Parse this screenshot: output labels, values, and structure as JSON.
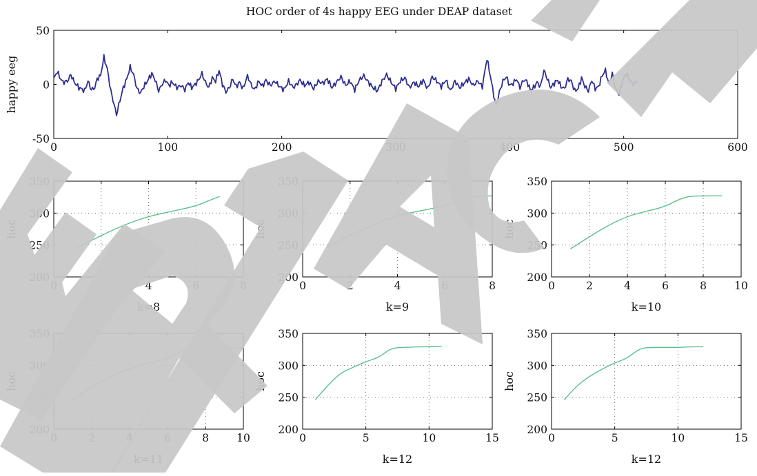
{
  "figure_title": "HOC order of 4s happy EEG under DEAP dataset",
  "watermark": "RETRACTED",
  "colors": {
    "eeg": "#2e2e8f",
    "hoc": "#5cbf8a",
    "watermark": "#c7c7c7"
  },
  "chart_data": [
    {
      "id": "eeg",
      "type": "line",
      "title": "HOC order of 4s happy EEG under DEAP dataset",
      "xlabel": "",
      "ylabel": "happy eeg",
      "xlim": [
        0,
        600
      ],
      "ylim": [
        -50,
        50
      ],
      "xticks": [
        0,
        100,
        200,
        300,
        400,
        500,
        600
      ],
      "yticks": [
        -50,
        0,
        50
      ],
      "grid": false,
      "samples": 512,
      "x_step": 1,
      "anchors": [
        [
          0,
          5
        ],
        [
          3,
          12
        ],
        [
          5,
          7
        ],
        [
          8,
          2
        ],
        [
          12,
          3
        ],
        [
          15,
          9
        ],
        [
          18,
          2
        ],
        [
          22,
          -3
        ],
        [
          24,
          -4
        ],
        [
          27,
          -6
        ],
        [
          30,
          3
        ],
        [
          33,
          -5
        ],
        [
          36,
          -3
        ],
        [
          38,
          5
        ],
        [
          41,
          8
        ],
        [
          44,
          25
        ],
        [
          47,
          14
        ],
        [
          50,
          -6
        ],
        [
          53,
          -19
        ],
        [
          55,
          -28
        ],
        [
          58,
          -15
        ],
        [
          61,
          -3
        ],
        [
          64,
          5
        ],
        [
          67,
          16
        ],
        [
          70,
          9
        ],
        [
          73,
          -4
        ],
        [
          76,
          -8
        ],
        [
          79,
          -2
        ],
        [
          82,
          3
        ],
        [
          86,
          10
        ],
        [
          89,
          4
        ],
        [
          92,
          -6
        ],
        [
          95,
          0
        ],
        [
          98,
          4
        ],
        [
          101,
          -1
        ],
        [
          104,
          2
        ],
        [
          108,
          -3
        ],
        [
          112,
          -1
        ],
        [
          115,
          -5
        ],
        [
          118,
          2
        ],
        [
          121,
          -3
        ],
        [
          124,
          0
        ],
        [
          127,
          4
        ],
        [
          130,
          10
        ],
        [
          133,
          2
        ],
        [
          136,
          -3
        ],
        [
          139,
          6
        ],
        [
          142,
          3
        ],
        [
          145,
          13
        ],
        [
          148,
          0
        ],
        [
          151,
          -7
        ],
        [
          154,
          -3
        ],
        [
          157,
          5
        ],
        [
          160,
          -2
        ],
        [
          163,
          2
        ],
        [
          166,
          -4
        ],
        [
          170,
          8
        ],
        [
          173,
          0
        ],
        [
          176,
          -5
        ],
        [
          180,
          3
        ],
        [
          183,
          -2
        ],
        [
          186,
          4
        ],
        [
          190,
          -1
        ],
        [
          194,
          3
        ],
        [
          198,
          -2
        ],
        [
          202,
          -5
        ],
        [
          206,
          3
        ],
        [
          210,
          -3
        ],
        [
          213,
          0
        ],
        [
          216,
          4
        ],
        [
          220,
          -1
        ],
        [
          224,
          2
        ],
        [
          228,
          -4
        ],
        [
          232,
          3
        ],
        [
          236,
          1
        ],
        [
          240,
          5
        ],
        [
          244,
          -3
        ],
        [
          248,
          2
        ],
        [
          252,
          7
        ],
        [
          256,
          -1
        ],
        [
          260,
          3
        ],
        [
          264,
          -5
        ],
        [
          268,
          4
        ],
        [
          272,
          8
        ],
        [
          276,
          2
        ],
        [
          280,
          -3
        ],
        [
          284,
          -6
        ],
        [
          288,
          3
        ],
        [
          292,
          9
        ],
        [
          296,
          2
        ],
        [
          300,
          -4
        ],
        [
          304,
          3
        ],
        [
          308,
          6
        ],
        [
          312,
          -3
        ],
        [
          316,
          2
        ],
        [
          320,
          -2
        ],
        [
          324,
          4
        ],
        [
          328,
          -4
        ],
        [
          332,
          7
        ],
        [
          336,
          3
        ],
        [
          340,
          -2
        ],
        [
          344,
          4
        ],
        [
          348,
          -6
        ],
        [
          352,
          3
        ],
        [
          356,
          -3
        ],
        [
          360,
          1
        ],
        [
          364,
          5
        ],
        [
          368,
          -1
        ],
        [
          372,
          3
        ],
        [
          376,
          -2
        ],
        [
          380,
          24
        ],
        [
          383,
          8
        ],
        [
          386,
          -10
        ],
        [
          388,
          -20
        ],
        [
          391,
          -7
        ],
        [
          394,
          3
        ],
        [
          397,
          7
        ],
        [
          400,
          -1
        ],
        [
          403,
          1
        ],
        [
          406,
          5
        ],
        [
          409,
          -3
        ],
        [
          412,
          4
        ],
        [
          415,
          3
        ],
        [
          418,
          -5
        ],
        [
          421,
          -3
        ],
        [
          424,
          2
        ],
        [
          427,
          -2
        ],
        [
          430,
          13
        ],
        [
          433,
          5
        ],
        [
          436,
          -3
        ],
        [
          439,
          1
        ],
        [
          442,
          4
        ],
        [
          445,
          -2
        ],
        [
          448,
          -4
        ],
        [
          451,
          5
        ],
        [
          454,
          3
        ],
        [
          457,
          -6
        ],
        [
          460,
          -4
        ],
        [
          463,
          6
        ],
        [
          466,
          -2
        ],
        [
          469,
          -6
        ],
        [
          472,
          4
        ],
        [
          475,
          -4
        ],
        [
          478,
          -2
        ],
        [
          481,
          8
        ],
        [
          484,
          13
        ],
        [
          487,
          0
        ],
        [
          490,
          10
        ],
        [
          493,
          -5
        ],
        [
          496,
          -9
        ],
        [
          499,
          3
        ],
        [
          502,
          10
        ],
        [
          505,
          5
        ],
        [
          508,
          0
        ],
        [
          512,
          3
        ]
      ]
    },
    {
      "id": "k8",
      "type": "line",
      "ylabel": "hoc",
      "xlabel": "k=8",
      "xlim": [
        0,
        8
      ],
      "ylim": [
        200,
        350
      ],
      "xticks": [
        0,
        2,
        4,
        6,
        8
      ],
      "yticks": [
        200,
        250,
        300,
        350
      ],
      "grid": true,
      "x": [
        1,
        2,
        3,
        4,
        5,
        6,
        6.5,
        7
      ],
      "y": [
        246,
        265,
        282,
        295,
        303,
        311,
        319,
        326
      ]
    },
    {
      "id": "k9",
      "type": "line",
      "ylabel": "hoc",
      "xlabel": "k=9",
      "xlim": [
        0,
        8
      ],
      "ylim": [
        200,
        350
      ],
      "xticks": [
        0,
        2,
        4,
        6,
        8
      ],
      "yticks": [
        200,
        250,
        300,
        350
      ],
      "grid": true,
      "x": [
        1,
        2,
        3,
        4,
        5,
        6,
        7,
        8
      ],
      "y": [
        246,
        265,
        282,
        296,
        304,
        311,
        326,
        327
      ]
    },
    {
      "id": "k10",
      "type": "line",
      "ylabel": "hoc",
      "xlabel": "k=10",
      "xlim": [
        0,
        10
      ],
      "ylim": [
        200,
        350
      ],
      "xticks": [
        0,
        2,
        4,
        6,
        8,
        10
      ],
      "yticks": [
        200,
        250,
        300,
        350
      ],
      "grid": true,
      "x": [
        1,
        2,
        3,
        4,
        5,
        6,
        7,
        8,
        9
      ],
      "y": [
        244,
        263,
        281,
        295,
        303,
        310,
        326,
        327,
        327
      ]
    },
    {
      "id": "k11",
      "type": "line",
      "ylabel": "hoc",
      "xlabel": "k=11",
      "xlim": [
        0,
        10
      ],
      "ylim": [
        200,
        350
      ],
      "xticks": [
        0,
        2,
        4,
        6,
        8,
        10
      ],
      "yticks": [
        200,
        250,
        300,
        350
      ],
      "grid": true,
      "x": [
        1,
        2,
        3,
        4,
        5,
        6,
        7,
        8,
        9,
        10
      ],
      "y": [
        246,
        266,
        282,
        295,
        304,
        310,
        327,
        327,
        327,
        327
      ]
    },
    {
      "id": "k12a",
      "type": "line",
      "ylabel": "hoc",
      "xlabel": "k=12",
      "xlim": [
        0,
        15
      ],
      "ylim": [
        200,
        350
      ],
      "xticks": [
        0,
        5,
        10,
        15
      ],
      "yticks": [
        200,
        250,
        300,
        350
      ],
      "grid": true,
      "x": [
        1,
        2,
        3,
        4,
        5,
        6,
        7,
        8,
        9,
        10,
        11
      ],
      "y": [
        246,
        269,
        288,
        297,
        306,
        312,
        327,
        328,
        329,
        329,
        330
      ]
    },
    {
      "id": "k12b",
      "type": "line",
      "ylabel": "hoc",
      "xlabel": "k=12",
      "xlim": [
        0,
        15
      ],
      "ylim": [
        200,
        350
      ],
      "xticks": [
        0,
        5,
        10,
        15
      ],
      "yticks": [
        200,
        250,
        300,
        350
      ],
      "grid": true,
      "x": [
        1,
        2,
        3,
        4,
        5,
        6,
        7,
        8,
        9,
        10,
        11,
        12
      ],
      "y": [
        246,
        268,
        283,
        294,
        304,
        311,
        327,
        328,
        328,
        328,
        329,
        329
      ]
    }
  ]
}
